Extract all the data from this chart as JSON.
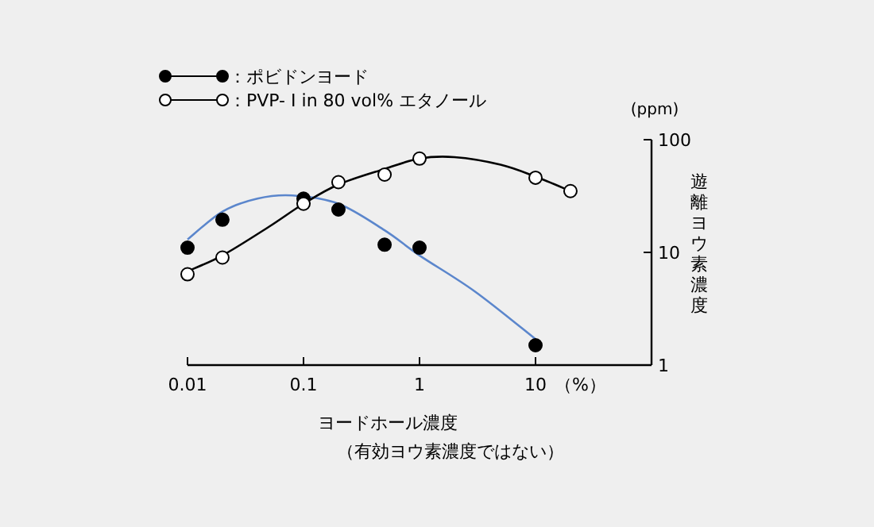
{
  "chart_data": {
    "type": "line",
    "xlabel": "ヨードホール濃度",
    "ylabel": "遊離ヨウ素濃度",
    "log": "xy",
    "xlim": [
      0.01,
      100
    ],
    "ylim": [
      1,
      100
    ],
    "xticks": [
      0.01,
      0.1,
      1,
      10
    ],
    "yticks": [
      1,
      10,
      100
    ],
    "grid": false,
    "legend": "top left",
    "annotations": [
      "（%）",
      "(ppm)",
      "（有効ヨウ素濃度ではない）"
    ],
    "series": [
      {
        "color": "#5b86cc",
        "marker": "none",
        "x": [
          0.01,
          0.02,
          0.04,
          0.08,
          0.2,
          0.5,
          1,
          3,
          10
        ],
        "values": [
          13,
          23,
          30,
          32,
          27,
          15.7,
          9.4,
          4.5,
          1.7
        ]
      },
      {
        "color": "#000000",
        "marker": "none",
        "x": [
          0.01,
          0.02,
          0.05,
          0.1,
          0.2,
          0.5,
          1,
          2,
          5,
          10,
          20
        ],
        "values": [
          6.8,
          9.4,
          16.8,
          27,
          40,
          55,
          68,
          70,
          60,
          47,
          35
        ]
      },
      {
        "type": "scatter",
        "name": "：ポビドンヨード",
        "color": "#000000",
        "marker": "circle",
        "x": [
          0.01,
          0.02,
          0.1,
          0.2,
          0.5,
          1,
          10
        ],
        "values": [
          11,
          19.5,
          30,
          24,
          11.7,
          11,
          1.5
        ]
      },
      {
        "type": "scatter",
        "name": "：PVP- I  in 80 vol% エタノール",
        "color": "#ffffff",
        "marker": "circle",
        "x": [
          0.01,
          0.02,
          0.1,
          0.2,
          0.5,
          1,
          10,
          20
        ],
        "values": [
          6.4,
          9,
          27,
          42,
          49,
          68,
          46,
          35
        ]
      }
    ]
  }
}
